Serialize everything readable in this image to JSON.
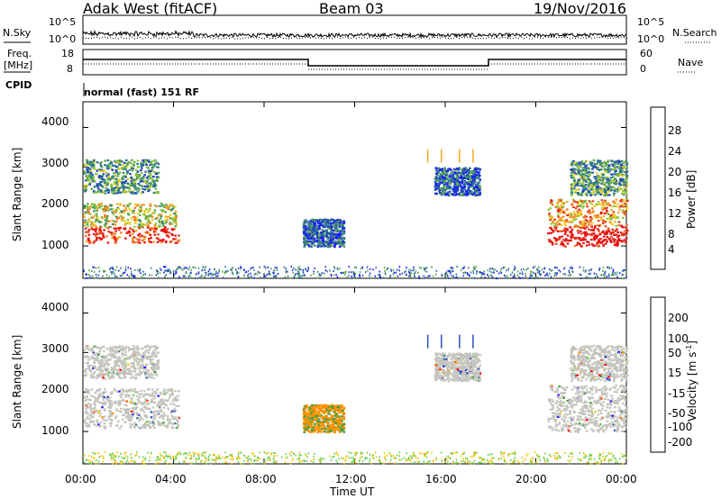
{
  "header": {
    "radar": "Adak West (fitACF)",
    "beam": "Beam 03",
    "date": "19/Nov/2016"
  },
  "top_panels": {
    "nsky_label": "N.Sky",
    "nsky_ticks": [
      "10^5",
      "10^0"
    ],
    "nsearch_label": "N.Search",
    "nsearch_ticks": [
      "10^5",
      "10^0"
    ],
    "freq_label_line1": "Freq.",
    "freq_label_line2": "[MHz]",
    "freq_ticks": [
      "18",
      "8"
    ],
    "nave_label": "Nave",
    "nave_ticks": [
      "60",
      "0"
    ],
    "cpid_label": "CPID",
    "cpid_text": "normal (fast) 151 RF"
  },
  "colors": {
    "power_scale": [
      "#1a1aff",
      "#2040c0",
      "#2e6da0",
      "#3a8a70",
      "#5aa845",
      "#8dc63f",
      "#e8d020",
      "#f5a623",
      "#f07820",
      "#e84020",
      "#e81010"
    ],
    "velocity_scale": [
      "#ff0000",
      "#ff5000",
      "#ff9000",
      "#ffc000",
      "#c8c8c8",
      "#c8c8c8",
      "#6ad04a",
      "#40a040",
      "#3a8090",
      "#2a50c0",
      "#2020ff"
    ],
    "ground_gray": "#c4c4bc"
  },
  "chart_data": [
    {
      "type": "heatmap",
      "name": "power",
      "ylabel": "Slant Range [km]",
      "yticks": [
        "1000",
        "2000",
        "3000",
        "4000"
      ],
      "colorbar_label": "Power [dB]",
      "colorbar_ticks": [
        "4",
        "8",
        "12",
        "16",
        "20",
        "24",
        "28"
      ],
      "xlim": [
        0,
        24
      ],
      "ylim": [
        180,
        4650
      ],
      "scatter_regions": [
        {
          "x": [
            0.0,
            4.2
          ],
          "y": [
            1100,
            2100
          ],
          "level": 0.55
        },
        {
          "x": [
            0.0,
            3.3
          ],
          "y": [
            2350,
            3200
          ],
          "level": 0.35
        },
        {
          "x": [
            9.7,
            11.5
          ],
          "y": [
            1000,
            1700
          ],
          "level": 0.2
        },
        {
          "x": [
            15.5,
            17.5
          ],
          "y": [
            2300,
            3000
          ],
          "level": 0.2
        },
        {
          "x": [
            20.5,
            24.0
          ],
          "y": [
            1000,
            2200
          ],
          "level": 0.7
        },
        {
          "x": [
            21.5,
            24.0
          ],
          "y": [
            2300,
            3200
          ],
          "level": 0.35
        }
      ]
    },
    {
      "type": "heatmap",
      "name": "velocity",
      "ylabel": "Slant Range [km]",
      "yticks": [
        "1000",
        "2000",
        "3000",
        "4000"
      ],
      "colorbar_label": "Velocity [m s",
      "colorbar_label_sup": "-1",
      "colorbar_label_end": "]",
      "colorbar_ticks": [
        "200",
        "100",
        "50",
        "15",
        "-15",
        "-50",
        "-100",
        "-200"
      ],
      "xlim": [
        0,
        24
      ],
      "ylim": [
        180,
        4650
      ]
    }
  ],
  "xaxis": {
    "ticks": [
      "00:00",
      "04:00",
      "08:00",
      "12:00",
      "16:00",
      "20:00",
      "00:00"
    ],
    "label": "Time UT"
  }
}
